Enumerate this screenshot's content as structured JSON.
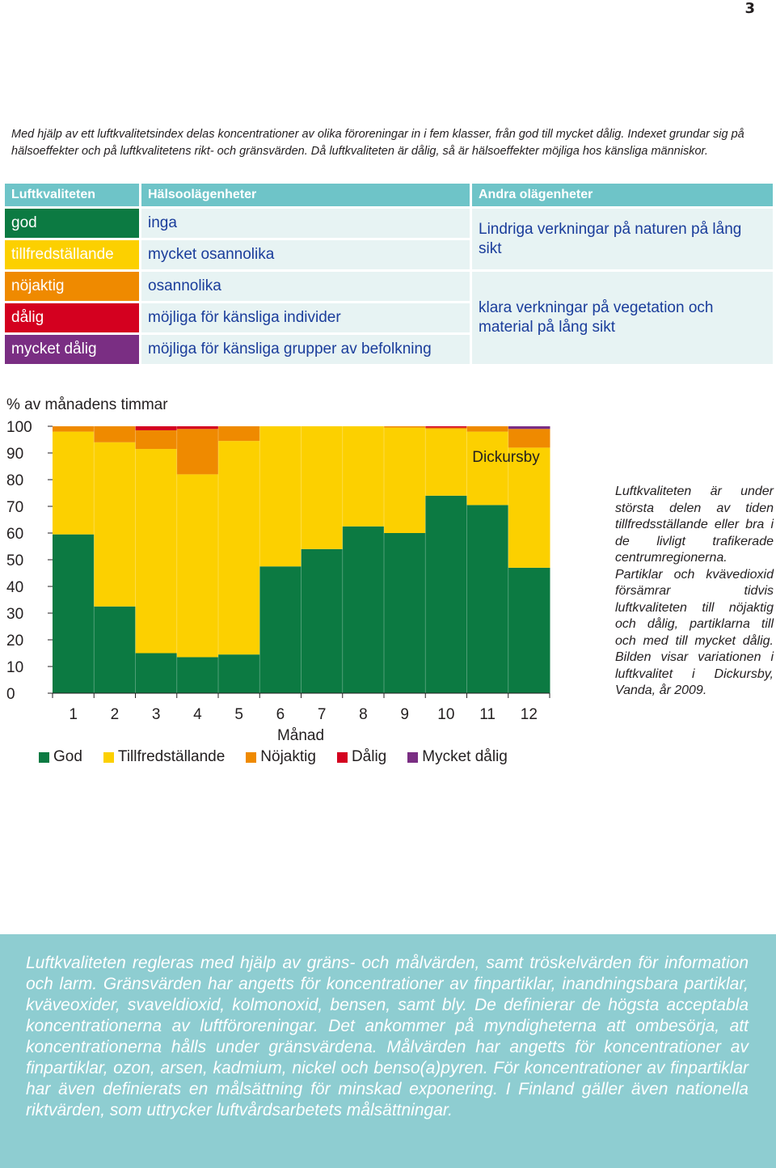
{
  "page_number": "3",
  "intro_text": "Med hjälp av ett luftkvalitetsindex delas koncentrationer av olika föroreningar in i fem klasser, från god till mycket dålig. Indexet grundar sig på hälsoeffekter och på luftkvalitetens rikt- och gränsvärden. Då luftkvaliteten är dålig, så är hälsoeffekter möjliga hos känsliga människor.",
  "table": {
    "headers": [
      "Luftkvaliteten",
      "Hälsoolägenheter",
      "Andra olägenheter"
    ],
    "rows": [
      {
        "class": "god",
        "health": "inga"
      },
      {
        "class": "tillfredställande",
        "health": "mycket osannolika"
      },
      {
        "class": "nöjaktig",
        "health": "osannolika"
      },
      {
        "class": "dålig",
        "health": "möjliga för känsliga individer"
      },
      {
        "class": "mycket dålig",
        "health": "möjliga för känsliga grupper av befolkning"
      }
    ],
    "other_1": "Lindriga verkningar på naturen på lång sikt",
    "other_2": "klara verkningar på vegetation och material på lång sikt"
  },
  "side_text": "Luftkvaliteten är under största delen av tiden tillfredsställande eller bra i de livligt trafikerade centrumregionerna. Partiklar och kvävedioxid försämrar tidvis luftkvaliteten till nöjaktig och dålig, partiklarna till och med till mycket dålig. Bilden visar variationen i luftkvalitet i Dickursby, Vanda, år 2009.",
  "info_text": "Luftkvaliteten regleras med hjälp av gräns- och målvärden, samt tröskelvärden för information och larm. Gränsvärden har angetts för koncentrationer av finpartiklar, inandningsbara partiklar, kväveoxider, svaveldioxid, kolmonoxid, bensen, samt bly. De definierar de högsta acceptabla koncentrationerna av luftföroreningar. Det ankommer på myndigheterna att ombesörja, att koncentrationerna hålls under gränsvärdena. Målvärden har angetts för koncentrationer av finpartiklar, ozon, arsen, kadmium, nickel och benso(a)pyren. För koncentrationer av finpartiklar har även definierats en målsättning för minskad exponering. I Finland gäller även nationella riktvärden, som uttrycker luftvårdsarbetets målsättningar.",
  "colors": {
    "God": "#0c7a42",
    "Tillfredställande": "#fcd000",
    "Nöjaktig": "#ef8a00",
    "Dålig": "#d4001f",
    "Mycket dålig": "#7a2e83",
    "header": "#6ec4c8"
  },
  "chart_data": {
    "type": "bar",
    "stacked": true,
    "ylabel": "% av månadens timmar",
    "xlabel": "Månad",
    "annotation": "Dickursby",
    "ylim": [
      0,
      100
    ],
    "yticks": [
      0,
      10,
      20,
      30,
      40,
      50,
      60,
      70,
      80,
      90,
      100
    ],
    "categories": [
      "1",
      "2",
      "3",
      "4",
      "5",
      "6",
      "7",
      "8",
      "9",
      "10",
      "11",
      "12"
    ],
    "series": [
      {
        "name": "God",
        "values": [
          59.5,
          32.5,
          15,
          13.5,
          14.5,
          47.5,
          54,
          62.5,
          60,
          74,
          70.5,
          47
        ]
      },
      {
        "name": "Tillfredställande",
        "values": [
          38.5,
          61.5,
          76.5,
          68.5,
          80,
          52.5,
          46,
          37.5,
          39.5,
          25,
          27.5,
          45
        ]
      },
      {
        "name": "Nöjaktig",
        "values": [
          2,
          6,
          7,
          17,
          5.5,
          0,
          0,
          0,
          0.5,
          0.5,
          2,
          7
        ]
      },
      {
        "name": "Dålig",
        "values": [
          0,
          0,
          1.5,
          1,
          0,
          0,
          0,
          0,
          0,
          0.5,
          0,
          0
        ]
      },
      {
        "name": "Mycket dålig",
        "values": [
          0,
          0,
          0,
          0,
          0,
          0,
          0,
          0,
          0,
          0,
          0,
          1
        ]
      }
    ]
  }
}
